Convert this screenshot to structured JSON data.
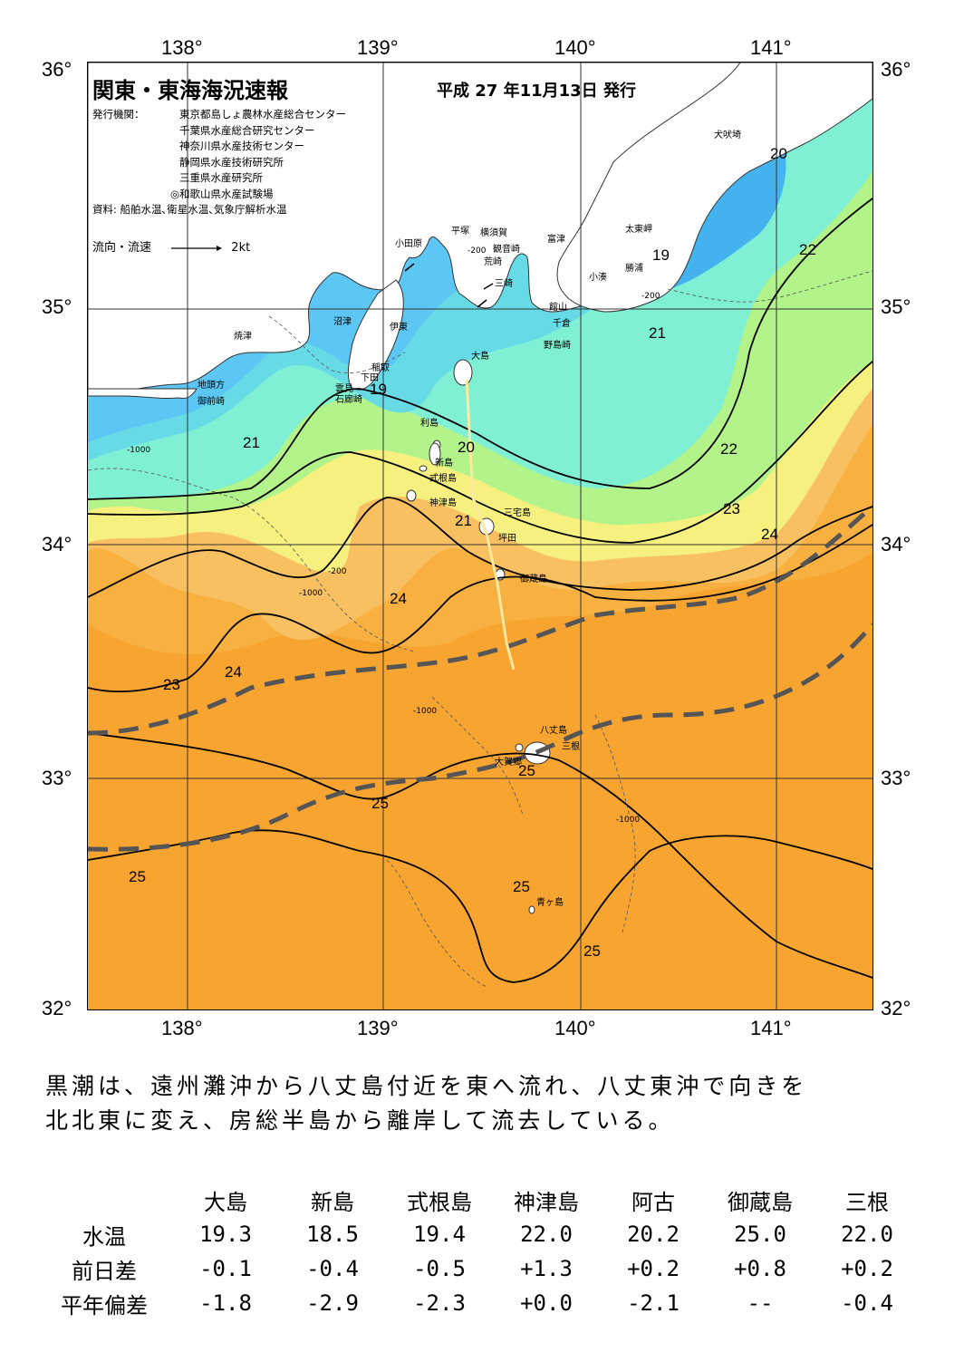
{
  "map": {
    "title": "関東・東海海況速報",
    "issue_date": "平成 27 年11月13日 発行",
    "agencies_label": "発行機関：",
    "agencies": [
      "東京都島しょ農林水産総合センター",
      "千葉県水産総合研究センター",
      "神奈川県水産技術センター",
      "静岡県水産技術研究所",
      "三重県水産研究所",
      "◎和歌山県水産試験場"
    ],
    "source": "資料: 船舶水温､衛星水温､気象庁解析水温",
    "legend_label": "流向・流速",
    "legend_scale": "2kt",
    "lon_labels": [
      "138°",
      "139°",
      "140°",
      "141°"
    ],
    "lat_labels": [
      "36°",
      "35°",
      "34°",
      "33°",
      "32°"
    ],
    "places": [
      "犬吠埼",
      "太東岬",
      "勝浦",
      "小湊",
      "富津",
      "館山",
      "千倉",
      "野島崎",
      "小田原",
      "平塚",
      "横須賀",
      "観音崎",
      "荒崎",
      "三崎",
      "沼津",
      "伊東",
      "稲取",
      "下田",
      "雲見",
      "石廊崎",
      "焼津",
      "地頭方",
      "御前崎",
      "大島",
      "利島",
      "新島",
      "式根島",
      "神津島",
      "三宅島",
      "坪田",
      "御蔵島",
      "八丈島",
      "三根",
      "大賀郷",
      "青ヶ島"
    ],
    "isotherm_labels": [
      "20",
      "22",
      "19",
      "21",
      "19",
      "21",
      "20",
      "22",
      "23",
      "24",
      "21",
      "24",
      "23",
      "24",
      "25",
      "25",
      "25",
      "25",
      "25"
    ],
    "depth_labels": [
      "-1000",
      "-200"
    ],
    "colors": {
      "t19": "#5cc6f4",
      "t20": "#66dbe6",
      "t21": "#7ff0d4",
      "t22": "#b2f38a",
      "t23": "#f6f07e",
      "t24": "#f8c060",
      "t25": "#f7a431",
      "land": "#ffffff",
      "kuroshio_axis": "#555555"
    }
  },
  "summary": [
    "黒潮は、遠州灘沖から八丈島付近を東へ流れ、八丈東沖で向きを",
    "北北東に変え、房総半島から離岸して流去している。"
  ],
  "table": {
    "columns": [
      "大島",
      "新島",
      "式根島",
      "神津島",
      "阿古",
      "御蔵島",
      "三根"
    ],
    "rows": [
      {
        "label": "水温",
        "values": [
          "19.3",
          "18.5",
          "19.4",
          "22.0",
          "20.2",
          "25.0",
          "22.0"
        ]
      },
      {
        "label": "前日差",
        "values": [
          "-0.1",
          "-0.4",
          "-0.5",
          "+1.3",
          "+0.2",
          "+0.8",
          "+0.2"
        ]
      },
      {
        "label": "平年偏差",
        "values": [
          "-1.8",
          "-2.9",
          "-2.3",
          "+0.0",
          "-2.1",
          "--",
          "-0.4"
        ]
      }
    ]
  }
}
